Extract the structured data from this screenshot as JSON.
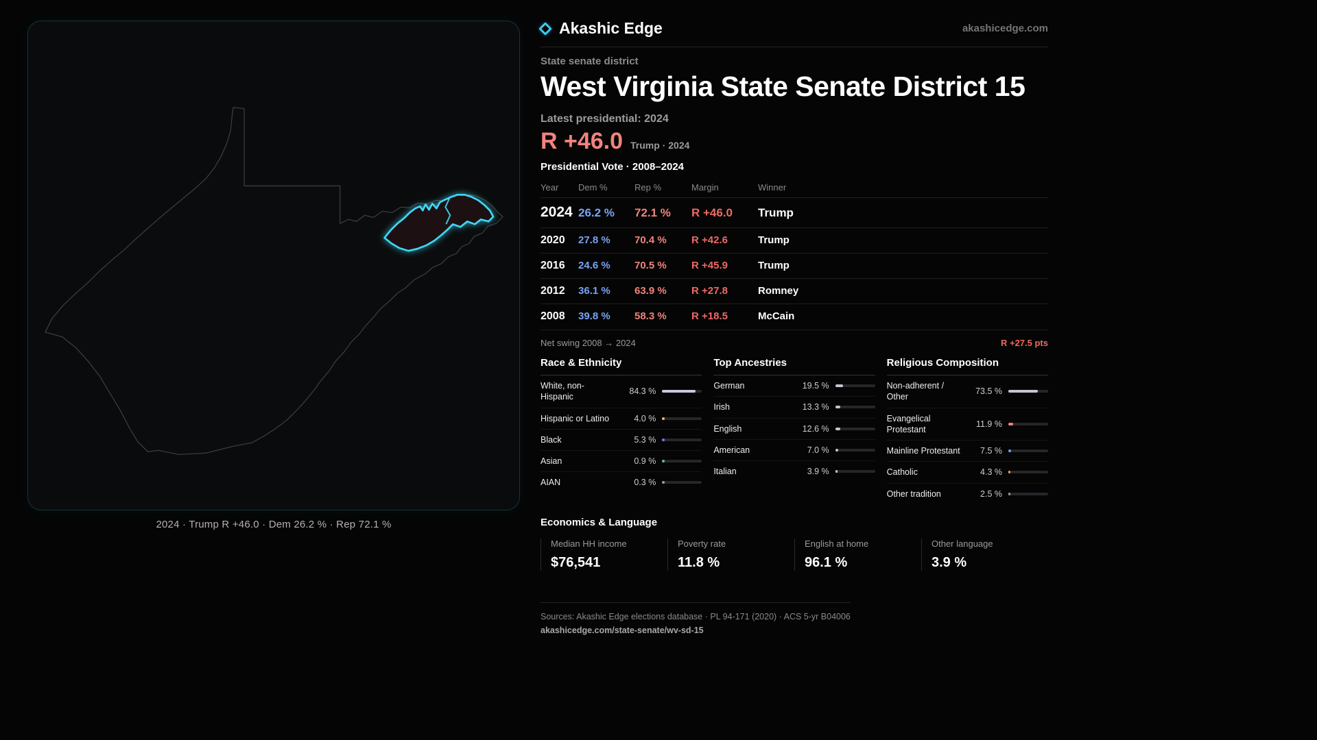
{
  "brand": {
    "name": "Akashic Edge",
    "site": "akashicedge.com"
  },
  "map": {
    "caption": "2024 · Trump R +46.0 · Dem 26.2 % · Rep 72.1 %"
  },
  "header": {
    "kicker": "State senate district",
    "title": "West Virginia State Senate District 15",
    "latest": "Latest presidential: 2024",
    "margin": "R +46.0",
    "margin_context": "Trump · 2024"
  },
  "vote_table": {
    "title": "Presidential Vote · 2008–2024",
    "columns": [
      "Year",
      "Dem %",
      "Rep %",
      "Margin",
      "Winner"
    ],
    "rows": [
      {
        "year": "2024",
        "dem": "26.2 %",
        "rep": "72.1 %",
        "margin": "R +46.0",
        "winner": "Trump",
        "emphasis": true
      },
      {
        "year": "2020",
        "dem": "27.8 %",
        "rep": "70.4 %",
        "margin": "R +42.6",
        "winner": "Trump",
        "emphasis": false
      },
      {
        "year": "2016",
        "dem": "24.6 %",
        "rep": "70.5 %",
        "margin": "R +45.9",
        "winner": "Trump",
        "emphasis": false
      },
      {
        "year": "2012",
        "dem": "36.1 %",
        "rep": "63.9 %",
        "margin": "R +27.8",
        "winner": "Romney",
        "emphasis": false
      },
      {
        "year": "2008",
        "dem": "39.8 %",
        "rep": "58.3 %",
        "margin": "R +18.5",
        "winner": "McCain",
        "emphasis": false
      }
    ],
    "net_swing_label": "Net swing 2008 → 2024",
    "net_swing_value": "R +27.5 pts"
  },
  "demographics": [
    {
      "title": "Race & Ethnicity",
      "rows": [
        {
          "label": "White, non-Hispanic",
          "value": "84.3 %",
          "pct": 84.3,
          "color": "#cdc9da"
        },
        {
          "label": "Hispanic or Latino",
          "value": "4.0 %",
          "pct": 4.0,
          "color": "#e3c05b"
        },
        {
          "label": "Black",
          "value": "5.3 %",
          "pct": 5.3,
          "color": "#7d74e8"
        },
        {
          "label": "Asian",
          "value": "0.9 %",
          "pct": 0.9,
          "color": "#5bbd8b"
        },
        {
          "label": "AIAN",
          "value": "0.3 %",
          "pct": 0.3,
          "color": "#9a9a9a"
        }
      ]
    },
    {
      "title": "Top Ancestries",
      "rows": [
        {
          "label": "German",
          "value": "19.5 %",
          "pct": 19.5,
          "color": "#c9c5cf"
        },
        {
          "label": "Irish",
          "value": "13.3 %",
          "pct": 13.3,
          "color": "#c9c5cf"
        },
        {
          "label": "English",
          "value": "12.6 %",
          "pct": 12.6,
          "color": "#c9c5cf"
        },
        {
          "label": "American",
          "value": "7.0 %",
          "pct": 7.0,
          "color": "#c9c5cf"
        },
        {
          "label": "Italian",
          "value": "3.9 %",
          "pct": 3.9,
          "color": "#c9c5cf"
        }
      ]
    },
    {
      "title": "Religious Composition",
      "rows": [
        {
          "label": "Non-adherent / Other",
          "value": "73.5 %",
          "pct": 73.5,
          "color": "#c9c5cf"
        },
        {
          "label": "Evangelical Protestant",
          "value": "11.9 %",
          "pct": 11.9,
          "color": "#ef807a"
        },
        {
          "label": "Mainline Protestant",
          "value": "7.5 %",
          "pct": 7.5,
          "color": "#6f9ff0"
        },
        {
          "label": "Catholic",
          "value": "4.3 %",
          "pct": 4.3,
          "color": "#e2a54a"
        },
        {
          "label": "Other tradition",
          "value": "2.5 %",
          "pct": 2.5,
          "color": "#9a9a9a"
        }
      ]
    }
  ],
  "economics": {
    "title": "Economics & Language",
    "stats": [
      {
        "label": "Median HH income",
        "value": "$76,541"
      },
      {
        "label": "Poverty rate",
        "value": "11.8 %"
      },
      {
        "label": "English at home",
        "value": "96.1 %"
      },
      {
        "label": "Other language",
        "value": "3.9 %"
      }
    ]
  },
  "footer": {
    "sources": "Sources: Akashic Edge elections database · PL 94-171 (2020) · ACS 5-yr B04006",
    "permalink": "akashicedge.com/state-senate/wv-sd-15"
  },
  "colors": {
    "accent_red": "#ee6a64",
    "dem_blue": "#79a3f2",
    "rep_red": "#f0837d",
    "cyan": "#41d9f6"
  }
}
